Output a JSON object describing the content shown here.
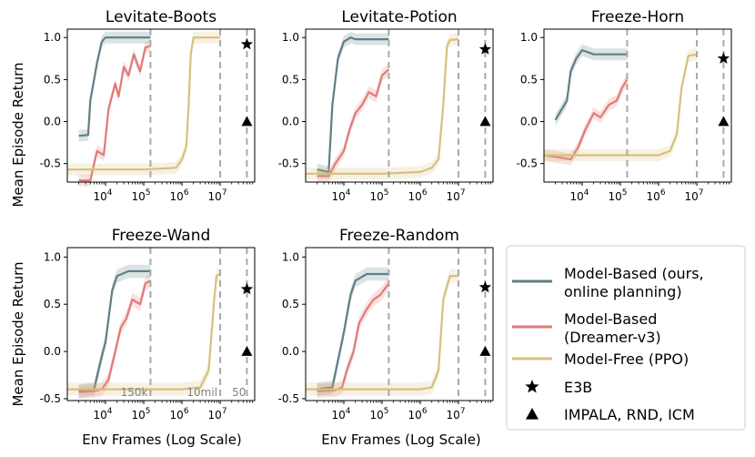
{
  "figure": {
    "ylabel": "Mean Episode Return",
    "xlabel": "Env Frames (Log Scale)"
  },
  "legend": {
    "items": [
      {
        "lines": [
          "Model-Based (ours,",
          " online planning)"
        ],
        "marker": "line",
        "color": "#5f7f85"
      },
      {
        "lines": [
          "Model-Based",
          "(Dreamer-v3)"
        ],
        "marker": "line",
        "color": "#e07a78"
      },
      {
        "lines": [
          "Model-Free (PPO)"
        ],
        "marker": "line",
        "color": "#d8c07c"
      },
      {
        "lines": [
          "E3B"
        ],
        "marker": "star",
        "color": "#000000"
      },
      {
        "lines": [
          "IMPALA, RND, ICM"
        ],
        "marker": "triangle",
        "color": "#000000"
      }
    ]
  },
  "axis_ticks": {
    "x": [
      {
        "base": "10",
        "exp": "4",
        "value": 10000
      },
      {
        "base": "10",
        "exp": "5",
        "value": 100000
      },
      {
        "base": "10",
        "exp": "6",
        "value": 1000000
      },
      {
        "base": "10",
        "exp": "7",
        "value": 10000000
      }
    ],
    "y": [
      {
        "label": "1.0",
        "value": 1.0
      },
      {
        "label": "0.5",
        "value": 0.5
      },
      {
        "label": "0.0",
        "value": 0.0
      },
      {
        "label": "-0.5",
        "value": -0.5
      }
    ]
  },
  "vline_labels": [
    "150k",
    "10mil",
    "50"
  ],
  "chart_data": [
    {
      "type": "line",
      "title": "Levitate-Boots",
      "xscale": "log",
      "xlim": [
        1000,
        80000000
      ],
      "ylim": [
        -0.72,
        1.1
      ],
      "vlines": [
        150000,
        10000000,
        50000000
      ],
      "series": [
        {
          "name": "Model-Based (ours, online planning)",
          "x": [
            2000,
            3500,
            4000,
            6000,
            8000,
            10000,
            20000,
            50000,
            150000
          ],
          "y": [
            -0.17,
            -0.16,
            0.25,
            0.7,
            0.95,
            1.0,
            1.0,
            1.0,
            1.0
          ]
        },
        {
          "name": "Model-Based (Dreamer-v3)",
          "x": [
            2000,
            3500,
            4000,
            6000,
            9000,
            12000,
            18000,
            22000,
            30000,
            40000,
            55000,
            80000,
            110000,
            150000
          ],
          "y": [
            -0.7,
            -0.7,
            -0.7,
            -0.35,
            -0.4,
            0.15,
            0.45,
            0.3,
            0.65,
            0.55,
            0.8,
            0.6,
            0.88,
            0.9
          ]
        },
        {
          "name": "Model-Free (PPO)",
          "x": [
            1000,
            100000,
            700000,
            1000000,
            1300000,
            1500000,
            1700000,
            2000000,
            3000000,
            10000000
          ],
          "y": [
            -0.57,
            -0.57,
            -0.55,
            -0.45,
            -0.3,
            0.2,
            0.8,
            1.0,
            1.0,
            1.0
          ]
        }
      ],
      "points": [
        {
          "name": "E3B",
          "x": 50000000,
          "y": 0.92
        },
        {
          "name": "IMPALA, RND, ICM",
          "x": 50000000,
          "y": 0.0
        }
      ]
    },
    {
      "type": "line",
      "title": "Levitate-Potion",
      "xscale": "log",
      "xlim": [
        1000,
        80000000
      ],
      "ylim": [
        -0.72,
        1.1
      ],
      "vlines": [
        150000,
        10000000,
        50000000
      ],
      "series": [
        {
          "name": "Model-Based (ours, online planning)",
          "x": [
            2000,
            4000,
            5000,
            7000,
            10000,
            15000,
            20000,
            50000,
            150000
          ],
          "y": [
            -0.57,
            -0.6,
            0.2,
            0.75,
            0.95,
            1.0,
            0.98,
            0.98,
            0.98
          ]
        },
        {
          "name": "Model-Based (Dreamer-v3)",
          "x": [
            2000,
            4000,
            6000,
            10000,
            14000,
            20000,
            30000,
            45000,
            70000,
            100000,
            150000
          ],
          "y": [
            -0.65,
            -0.65,
            -0.5,
            -0.35,
            -0.1,
            0.1,
            0.2,
            0.35,
            0.3,
            0.55,
            0.62
          ]
        },
        {
          "name": "Model-Free (PPO)",
          "x": [
            1000,
            100000,
            1000000,
            2000000,
            3000000,
            4000000,
            5000000,
            6000000,
            10000000
          ],
          "y": [
            -0.62,
            -0.62,
            -0.6,
            -0.55,
            -0.45,
            0.2,
            0.9,
            0.97,
            0.98
          ]
        }
      ],
      "points": [
        {
          "name": "E3B",
          "x": 50000000,
          "y": 0.86
        },
        {
          "name": "IMPALA, RND, ICM",
          "x": 50000000,
          "y": 0.0
        }
      ]
    },
    {
      "type": "line",
      "title": "Freeze-Horn",
      "xscale": "log",
      "xlim": [
        1000,
        80000000
      ],
      "ylim": [
        -0.72,
        1.1
      ],
      "vlines": [
        150000,
        10000000,
        50000000
      ],
      "series": [
        {
          "name": "Model-Based (ours, online planning)",
          "x": [
            2000,
            4000,
            5000,
            7000,
            10000,
            20000,
            150000
          ],
          "y": [
            0.02,
            0.25,
            0.6,
            0.75,
            0.85,
            0.8,
            0.8
          ]
        },
        {
          "name": "Model-Based (Dreamer-v3)",
          "x": [
            1000,
            2000,
            5000,
            8000,
            12000,
            20000,
            30000,
            50000,
            80000,
            110000,
            150000
          ],
          "y": [
            -0.4,
            -0.42,
            -0.45,
            -0.3,
            -0.1,
            0.1,
            0.05,
            0.2,
            0.25,
            0.4,
            0.5
          ]
        },
        {
          "name": "Model-Free (PPO)",
          "x": [
            1000,
            1000000,
            2000000,
            3000000,
            4000000,
            6000000,
            10000000
          ],
          "y": [
            -0.4,
            -0.4,
            -0.35,
            -0.15,
            0.4,
            0.78,
            0.8
          ]
        }
      ],
      "points": [
        {
          "name": "E3B",
          "x": 50000000,
          "y": 0.75
        },
        {
          "name": "IMPALA, RND, ICM",
          "x": 50000000,
          "y": 0.0
        }
      ]
    },
    {
      "type": "line",
      "title": "Freeze-Wand",
      "xscale": "log",
      "xlim": [
        1000,
        80000000
      ],
      "ylim": [
        -0.52,
        1.1
      ],
      "vlines": [
        150000,
        10000000,
        50000000
      ],
      "series": [
        {
          "name": "Model-Based (ours, online planning)",
          "x": [
            2000,
            5000,
            8000,
            10000,
            15000,
            20000,
            40000,
            150000
          ],
          "y": [
            -0.42,
            -0.4,
            -0.05,
            0.1,
            0.65,
            0.8,
            0.85,
            0.85
          ]
        },
        {
          "name": "Model-Based (Dreamer-v3)",
          "x": [
            2000,
            5000,
            8000,
            12000,
            18000,
            25000,
            35000,
            50000,
            80000,
            110000,
            150000
          ],
          "y": [
            -0.43,
            -0.42,
            -0.4,
            -0.3,
            0.0,
            0.25,
            0.35,
            0.55,
            0.5,
            0.72,
            0.75
          ]
        },
        {
          "name": "Model-Free (PPO)",
          "x": [
            1000,
            1000000,
            3000000,
            5000000,
            7000000,
            8000000,
            10000000
          ],
          "y": [
            -0.4,
            -0.4,
            -0.38,
            -0.2,
            0.55,
            0.8,
            0.82
          ]
        }
      ],
      "points": [
        {
          "name": "E3B",
          "x": 50000000,
          "y": 0.66
        },
        {
          "name": "IMPALA, RND, ICM",
          "x": 50000000,
          "y": 0.0
        }
      ]
    },
    {
      "type": "line",
      "title": "Freeze-Random",
      "xscale": "log",
      "xlim": [
        1000,
        80000000
      ],
      "ylim": [
        -0.52,
        1.1
      ],
      "vlines": [
        150000,
        10000000,
        50000000
      ],
      "series": [
        {
          "name": "Model-Based (ours, online planning)",
          "x": [
            2000,
            5000,
            7000,
            10000,
            15000,
            20000,
            40000,
            150000
          ],
          "y": [
            -0.4,
            -0.38,
            -0.1,
            0.2,
            0.6,
            0.75,
            0.82,
            0.82
          ]
        },
        {
          "name": "Model-Based (Dreamer-v3)",
          "x": [
            2000,
            6000,
            9000,
            12000,
            18000,
            25000,
            40000,
            60000,
            90000,
            150000
          ],
          "y": [
            -0.42,
            -0.41,
            -0.38,
            -0.2,
            0.0,
            0.3,
            0.45,
            0.55,
            0.6,
            0.72
          ]
        },
        {
          "name": "Model-Free (PPO)",
          "x": [
            1000,
            1000000,
            2000000,
            3000000,
            4000000,
            6000000,
            10000000
          ],
          "y": [
            -0.4,
            -0.4,
            -0.38,
            -0.2,
            0.55,
            0.8,
            0.8
          ]
        }
      ],
      "points": [
        {
          "name": "E3B",
          "x": 50000000,
          "y": 0.68
        },
        {
          "name": "IMPALA, RND, ICM",
          "x": 50000000,
          "y": 0.0
        }
      ]
    }
  ]
}
